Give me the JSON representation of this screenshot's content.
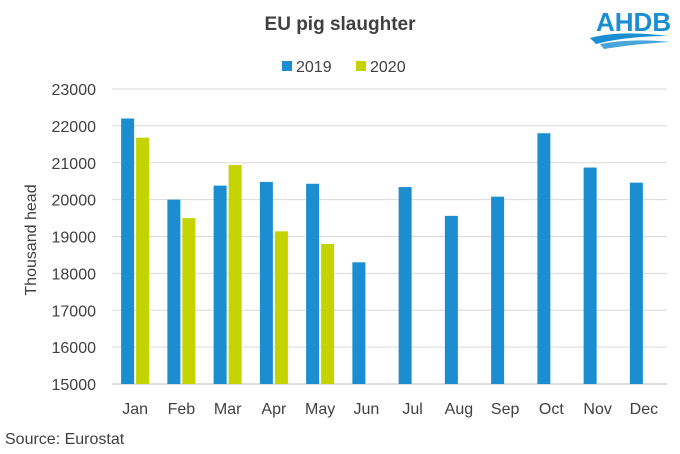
{
  "chart_data": {
    "type": "bar",
    "title": "EU pig slaughter",
    "xlabel": "",
    "ylabel": "Thousand head",
    "ylim": [
      15000,
      23000
    ],
    "ytick_step": 1000,
    "grid": true,
    "legend_position": "top-center",
    "categories": [
      "Jan",
      "Feb",
      "Mar",
      "Apr",
      "May",
      "Jun",
      "Jul",
      "Aug",
      "Sep",
      "Oct",
      "Nov",
      "Dec"
    ],
    "series": [
      {
        "name": "2019",
        "color": "#1a8ed1",
        "values": [
          22200,
          20000,
          20380,
          20480,
          20430,
          18300,
          20340,
          19560,
          20080,
          21800,
          20870,
          20460
        ]
      },
      {
        "name": "2020",
        "color": "#c5d300",
        "values": [
          21680,
          19500,
          20940,
          19140,
          18800,
          null,
          null,
          null,
          null,
          null,
          null,
          null
        ]
      }
    ]
  },
  "source_text": "Source: Eurostat",
  "logo": {
    "text": "AHDB",
    "color": "#1a8ed1"
  }
}
